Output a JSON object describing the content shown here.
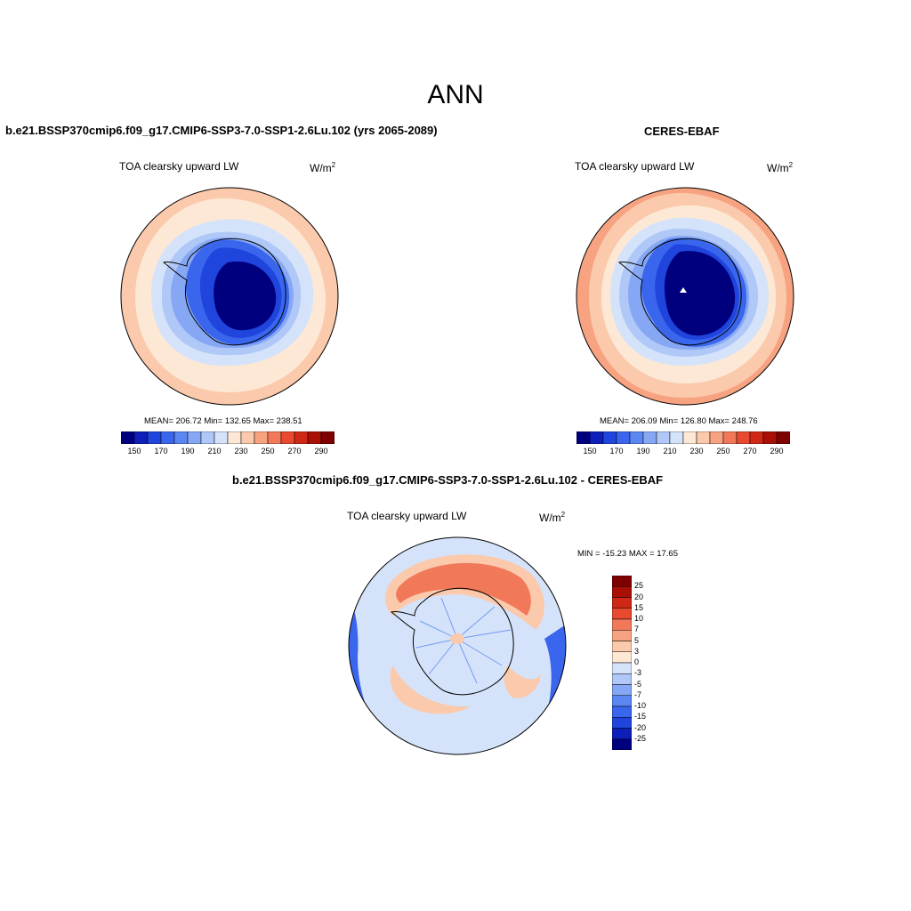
{
  "title": "ANN",
  "panels": {
    "test": {
      "case": "b.e21.BSSP370cmip6.f09_g17.CMIP6-SSP3-7.0-SSP1-2.6Lu.102 (yrs 2065-2089)",
      "variable": "TOA clearsky upward LW",
      "units_base": "W/m",
      "units_exp": "2",
      "stats": "MEAN= 206.72  Min= 132.65  Max= 238.51"
    },
    "ref": {
      "case": "CERES-EBAF",
      "variable": "TOA clearsky upward LW",
      "units_base": "W/m",
      "units_exp": "2",
      "stats": "MEAN= 206.09  Min= 126.80  Max= 248.76"
    },
    "diff": {
      "case": "b.e21.BSSP370cmip6.f09_g17.CMIP6-SSP3-7.0-SSP1-2.6Lu.102 - CERES-EBAF",
      "variable": "TOA clearsky upward LW",
      "units_base": "W/m",
      "units_exp": "2",
      "stats": "MIN = -15.23 MAX =  17.65"
    }
  },
  "colorbar_abs": {
    "colors": [
      "#00007f",
      "#0d1fb8",
      "#1f45dd",
      "#3a66ee",
      "#5a87f2",
      "#86a8f4",
      "#b0c8f7",
      "#d5e3fa",
      "#fde8d6",
      "#fbc9ab",
      "#f7a381",
      "#f2785a",
      "#e8492f",
      "#cf2815",
      "#a91005",
      "#7f0000"
    ],
    "ticks": [
      "150",
      "170",
      "190",
      "210",
      "230",
      "250",
      "270",
      "290"
    ]
  },
  "colorbar_diff": {
    "colors": [
      "#7f0000",
      "#a91005",
      "#cf2815",
      "#e8492f",
      "#f2785a",
      "#f7a381",
      "#fbc9ab",
      "#fde8d6",
      "#d5e3fa",
      "#b0c8f7",
      "#86a8f4",
      "#5a87f2",
      "#3a66ee",
      "#1f45dd",
      "#0d1fb8",
      "#00007f"
    ],
    "ticks": [
      "25",
      "20",
      "15",
      "10",
      "7",
      "5",
      "3",
      "0",
      "-3",
      "-5",
      "-7",
      "-10",
      "-15",
      "-20",
      "-25"
    ]
  },
  "map_colors": {
    "ocean_warm": "#fde8d6",
    "ocean_mid": "#fbc9ab",
    "ocean_hot": "#f7a381",
    "ice_edge": "#d5e3fa",
    "ice_light": "#b0c8f7",
    "ice_mid": "#86a8f4",
    "ice_blue": "#3a66ee",
    "ice_deep": "#1f45dd",
    "ice_core": "#00007f",
    "diff_base": "#d5e3fa",
    "diff_pos": "#f2785a",
    "diff_pos_light": "#fbc9ab",
    "diff_neg": "#3a66ee"
  }
}
